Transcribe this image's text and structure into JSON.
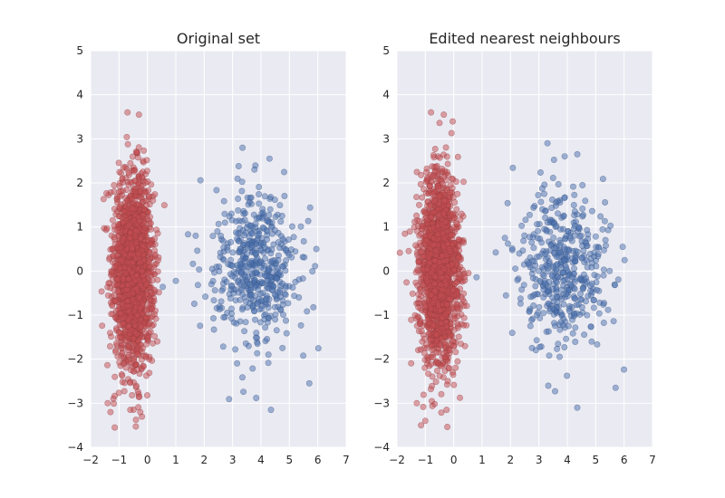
{
  "colors": {
    "background": "#eaeaf2",
    "grid": "#ffffff",
    "class_0": "#4c72b0",
    "class_1": "#c44e52"
  },
  "chart_data": [
    {
      "type": "scatter",
      "title": "Original set",
      "xlabel": "",
      "ylabel": "",
      "xlim": [
        -2,
        7
      ],
      "ylim": [
        -4,
        5
      ],
      "xticks": [
        -2,
        -1,
        0,
        1,
        2,
        3,
        4,
        5,
        6,
        7
      ],
      "yticks": [
        -4,
        -3,
        -2,
        -1,
        0,
        1,
        2,
        3,
        4,
        5
      ],
      "grid": true,
      "alpha": 0.5,
      "series": [
        {
          "color": "#c44e52",
          "count": 1800,
          "center": [
            -0.5,
            0.0
          ],
          "spread": [
            0.35,
            1.05
          ],
          "extremes": [
            [
              -0.7,
              3.6
            ],
            [
              -0.3,
              3.55
            ],
            [
              -1.15,
              -3.55
            ],
            [
              -1.3,
              -3.2
            ],
            [
              -0.25,
              -3.2
            ],
            [
              -1.4,
              -3.0
            ]
          ]
        },
        {
          "color": "#4c72b0",
          "count": 500,
          "center": [
            3.8,
            0.0
          ],
          "spread": [
            0.8,
            0.85
          ],
          "extremes": [
            [
              3.35,
              2.8
            ],
            [
              4.3,
              2.55
            ],
            [
              4.35,
              -3.15
            ],
            [
              5.7,
              -2.55
            ],
            [
              1.7,
              0.8
            ],
            [
              5.95,
              0.5
            ]
          ]
        }
      ]
    },
    {
      "type": "scatter",
      "title": "Edited nearest neighbours",
      "xlabel": "",
      "ylabel": "",
      "xlim": [
        -2,
        7
      ],
      "ylim": [
        -4,
        5
      ],
      "xticks": [
        -2,
        -1,
        0,
        1,
        2,
        3,
        4,
        5,
        6,
        7
      ],
      "yticks": [
        -4,
        -3,
        -2,
        -1,
        0,
        1,
        2,
        3,
        4,
        5
      ],
      "grid": true,
      "alpha": 0.5,
      "series": [
        {
          "color": "#c44e52",
          "count": 1780,
          "center": [
            -0.5,
            0.0
          ],
          "spread": [
            0.35,
            1.05
          ],
          "extremes": [
            [
              -0.8,
              3.6
            ],
            [
              -0.35,
              3.55
            ],
            [
              -1.15,
              -3.5
            ],
            [
              -1.3,
              -3.0
            ],
            [
              -0.25,
              -3.15
            ],
            [
              -1.0,
              -3.4
            ]
          ]
        },
        {
          "color": "#4c72b0",
          "count": 450,
          "center": [
            3.8,
            0.0
          ],
          "spread": [
            0.8,
            0.85
          ],
          "extremes": [
            [
              3.3,
              2.9
            ],
            [
              4.35,
              2.65
            ],
            [
              4.35,
              -3.1
            ],
            [
              5.7,
              -2.65
            ],
            [
              1.8,
              0.75
            ],
            [
              5.95,
              0.55
            ]
          ]
        }
      ]
    }
  ]
}
